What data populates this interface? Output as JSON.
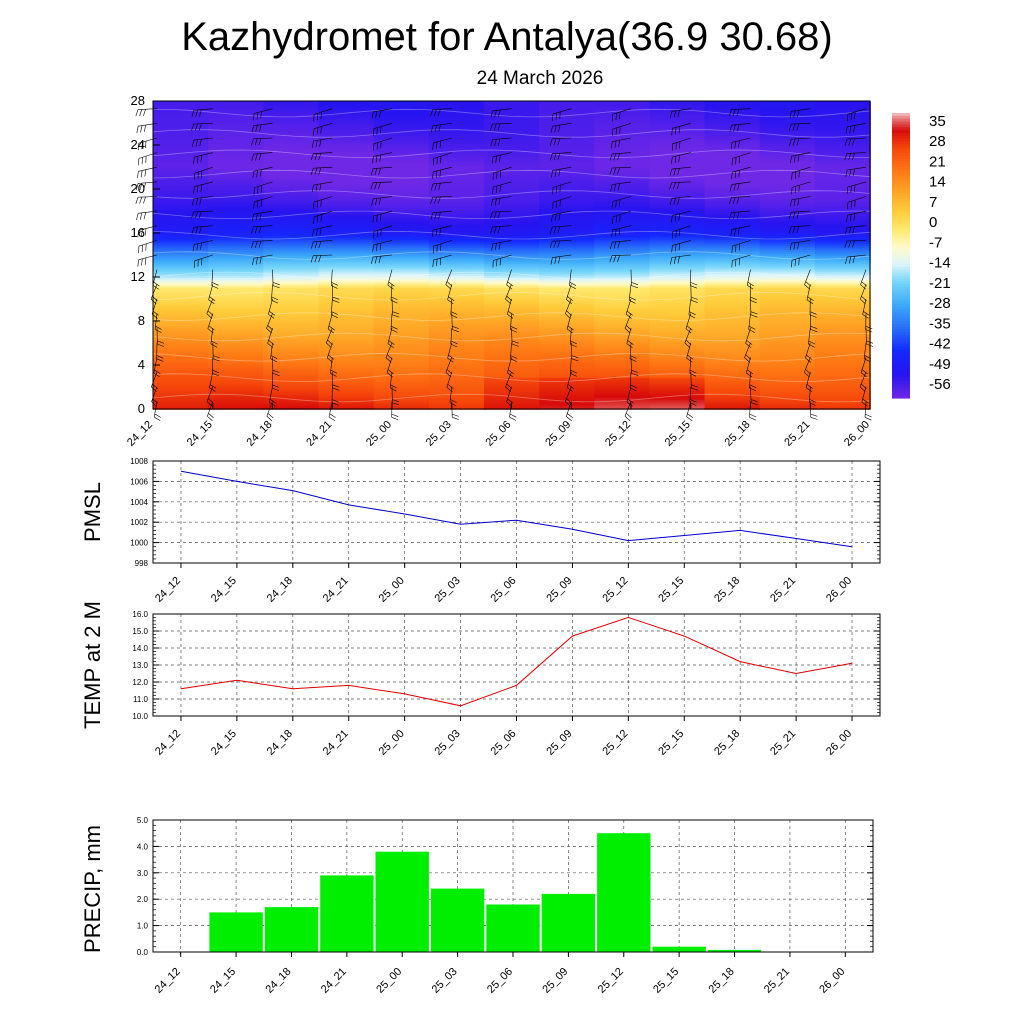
{
  "title": "Kazhydromet for Antalya(36.9 30.68)",
  "subtitle": "24 March 2026",
  "colors": {
    "pmsl": "#0000cc",
    "temp": "#e00000",
    "precip": "#00ee00"
  },
  "time_labels": [
    "24_12",
    "24_15",
    "24_18",
    "24_21",
    "25_00",
    "25_03",
    "25_06",
    "25_09",
    "25_12",
    "25_15",
    "25_18",
    "25_21",
    "26_00"
  ],
  "chart_data": [
    {
      "type": "heatmap",
      "name": "vertical-profile",
      "y_ticks": [
        "0",
        "4",
        "8",
        "12",
        "16",
        "20",
        "24",
        "28"
      ],
      "ylim": [
        0,
        28
      ],
      "colorbar_labels": [
        "35",
        "28",
        "21",
        "14",
        "7",
        "0",
        "-7",
        "-14",
        "-21",
        "-28",
        "-35",
        "-42",
        "-49",
        "-56"
      ],
      "value_range": [
        -60,
        38
      ],
      "profile": [
        [
          0,
          30
        ],
        [
          3,
          22
        ],
        [
          6,
          14
        ],
        [
          9,
          6
        ],
        [
          11,
          0
        ],
        [
          12,
          -14
        ],
        [
          14,
          -30
        ],
        [
          16,
          -48
        ],
        [
          19,
          -56
        ],
        [
          22,
          -60
        ],
        [
          25,
          -56
        ],
        [
          28,
          -53
        ]
      ]
    },
    {
      "type": "line",
      "name": "pmsl",
      "ylabel": "PMSL",
      "y_ticks": [
        "998",
        "1000",
        "1002",
        "1004",
        "1006",
        "1008"
      ],
      "ylim": [
        998,
        1008
      ],
      "values": [
        1007.0,
        1006.0,
        1005.1,
        1003.7,
        1002.8,
        1001.8,
        1002.2,
        1001.3,
        1000.2,
        1000.7,
        1001.2,
        1000.4,
        999.6
      ]
    },
    {
      "type": "line",
      "name": "temp",
      "ylabel": "TEMP at 2 M",
      "y_ticks": [
        "10.0",
        "11.0",
        "12.0",
        "13.0",
        "14.0",
        "15.0",
        "16.0"
      ],
      "ylim": [
        10,
        16
      ],
      "values": [
        11.6,
        12.1,
        11.6,
        11.8,
        11.3,
        10.6,
        11.8,
        14.7,
        15.8,
        14.7,
        13.2,
        12.5,
        13.1
      ]
    },
    {
      "type": "bar",
      "name": "precip",
      "ylabel": "PRECIP, mm",
      "y_ticks": [
        "0.0",
        "1.0",
        "2.0",
        "3.0",
        "4.0",
        "5.0"
      ],
      "ylim": [
        0,
        5
      ],
      "values": [
        0,
        1.5,
        1.7,
        2.9,
        3.8,
        2.4,
        1.8,
        2.2,
        4.5,
        0.2,
        0.08,
        0,
        0
      ]
    }
  ]
}
